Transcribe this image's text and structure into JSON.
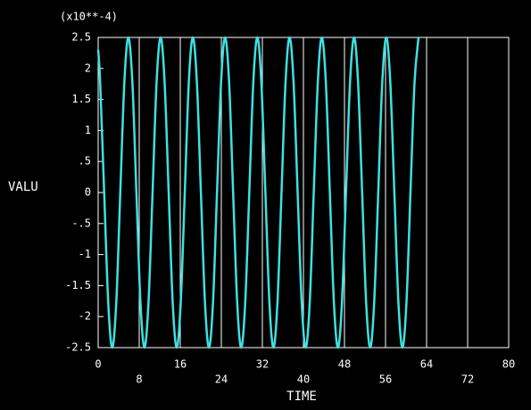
{
  "chart_data": {
    "type": "line",
    "y_multiplier": "(x10**-4)",
    "ylabel": "VALU",
    "xlabel": "TIME",
    "xlim": [
      0,
      80
    ],
    "xticks": [
      0,
      8,
      16,
      24,
      32,
      40,
      48,
      56,
      64,
      72,
      80
    ],
    "ylim": [
      -2.5,
      2.5
    ],
    "yticks": [
      2.5,
      2,
      1.5,
      1,
      {
        "value": 0.5,
        "label": ".5"
      },
      0,
      {
        "value": -0.5,
        "label": "-.5"
      },
      -1,
      -1.5,
      -2,
      -2.5
    ],
    "grid": true,
    "series": [
      {
        "name": "VALU",
        "color": "#3fe0e0",
        "x": [
          0,
          0.39,
          1.17,
          1.96,
          2.74,
          3.53,
          4.31,
          5.1,
          5.88,
          6.67,
          7.45,
          8.24,
          9.02,
          9.81,
          10.6,
          11.38,
          12.17,
          12.95,
          13.74,
          14.52,
          15.31,
          16.09,
          16.88,
          17.66,
          18.45,
          19.24,
          20.02,
          20.81,
          21.59,
          22.38,
          23.16,
          23.95,
          24.73,
          25.52,
          26.3,
          27.09,
          27.87,
          28.66,
          29.45,
          30.23,
          31.02,
          31.8,
          32.59,
          33.37,
          34.16,
          34.94,
          35.73,
          36.51,
          37.3,
          38.08,
          38.87,
          39.66,
          40.44,
          41.23,
          42.01,
          42.8,
          43.58,
          44.37,
          45.15,
          45.94,
          46.72,
          47.51,
          48.29,
          49.08,
          49.87,
          50.65,
          51.44,
          52.22,
          53.01,
          53.79,
          54.58,
          55.36,
          56.15,
          56.93,
          57.72,
          58.51,
          59.29,
          60.08,
          60.86,
          61.65,
          62.43
        ],
        "values": [
          2.3,
          1.77,
          0,
          -1.77,
          -2.5,
          -1.77,
          0,
          1.77,
          2.5,
          1.77,
          0,
          -1.77,
          -2.5,
          -1.77,
          0,
          1.77,
          2.5,
          1.77,
          0,
          -1.77,
          -2.5,
          -1.77,
          0,
          1.77,
          2.5,
          1.77,
          0,
          -1.77,
          -2.5,
          -1.77,
          0,
          1.77,
          2.5,
          1.77,
          0,
          -1.77,
          -2.5,
          -1.77,
          0,
          1.77,
          2.5,
          1.77,
          0,
          -1.77,
          -2.5,
          -1.77,
          0,
          1.77,
          2.5,
          1.77,
          0,
          -1.77,
          -2.5,
          -1.77,
          0,
          1.77,
          2.5,
          1.77,
          0,
          -1.77,
          -2.5,
          -1.77,
          0,
          1.77,
          2.5,
          1.77,
          0,
          -1.77,
          -2.5,
          -1.77,
          0,
          1.77,
          2.5,
          1.77,
          0,
          -1.77,
          -2.5,
          -1.77,
          0,
          1.77,
          2.5
        ]
      }
    ]
  }
}
